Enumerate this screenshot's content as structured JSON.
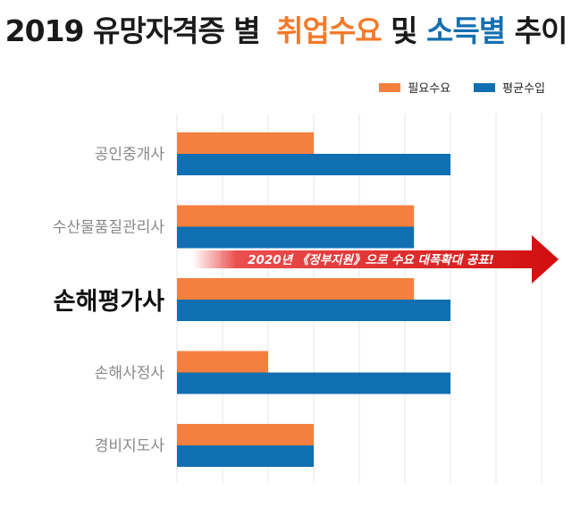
{
  "title": {
    "part1": "2019 유망자격증 별",
    "part2": "취업수요",
    "part3": "및",
    "part4": "소득별",
    "part5": "추이"
  },
  "colors": {
    "demand": "#f47f3e",
    "income": "#0f6fb0",
    "highlight": "#e01616"
  },
  "chart_data": {
    "type": "bar",
    "orientation": "horizontal",
    "categories": [
      "공인중개사",
      "수산물품질관리사",
      "손해평가사",
      "손해사정사",
      "경비지도사"
    ],
    "highlight_category": "손해평가사",
    "series": [
      {
        "name": "필요수요",
        "values": [
          3,
          5.2,
          5.2,
          2,
          3
        ]
      },
      {
        "name": "평균수입",
        "values": [
          6,
          5.2,
          6,
          6,
          3
        ]
      }
    ],
    "xlim": [
      0,
      8
    ],
    "grid": true,
    "legend_position": "top-right",
    "annotation": "2020년 《정부지원》으로 수요 대폭확대 공표!"
  }
}
